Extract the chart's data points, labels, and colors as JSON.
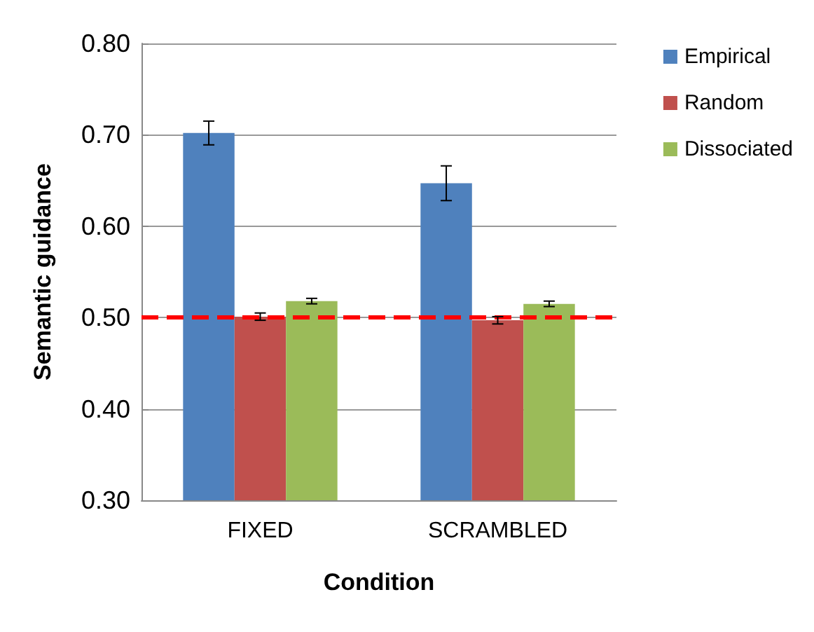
{
  "chart_data": {
    "type": "bar",
    "xlabel": "Condition",
    "ylabel": "Semantic guidance",
    "categories": [
      "FIXED",
      "SCRAMBLED"
    ],
    "series": [
      {
        "name": "Empirical",
        "color": "#4f81bd",
        "values": [
          0.702,
          0.647
        ],
        "errors": [
          0.013,
          0.019
        ]
      },
      {
        "name": "Random",
        "color": "#c0504d",
        "values": [
          0.501,
          0.497
        ],
        "errors": [
          0.004,
          0.004
        ]
      },
      {
        "name": "Dissociated",
        "color": "#9bbb59",
        "values": [
          0.518,
          0.515
        ],
        "errors": [
          0.003,
          0.003
        ]
      }
    ],
    "ylim": [
      0.3,
      0.8
    ],
    "yticks": [
      {
        "value": 0.3,
        "label": "0.30"
      },
      {
        "value": 0.4,
        "label": "0.40"
      },
      {
        "value": 0.5,
        "label": "0.50"
      },
      {
        "value": 0.6,
        "label": "0.60"
      },
      {
        "value": 0.7,
        "label": "0.70"
      },
      {
        "value": 0.8,
        "label": "0.80"
      }
    ],
    "grid": "y",
    "legend": "right",
    "ref_lines": [
      {
        "axis": "y",
        "value": 0.5,
        "color": "#ff0000",
        "line_style": "dashed"
      }
    ]
  }
}
